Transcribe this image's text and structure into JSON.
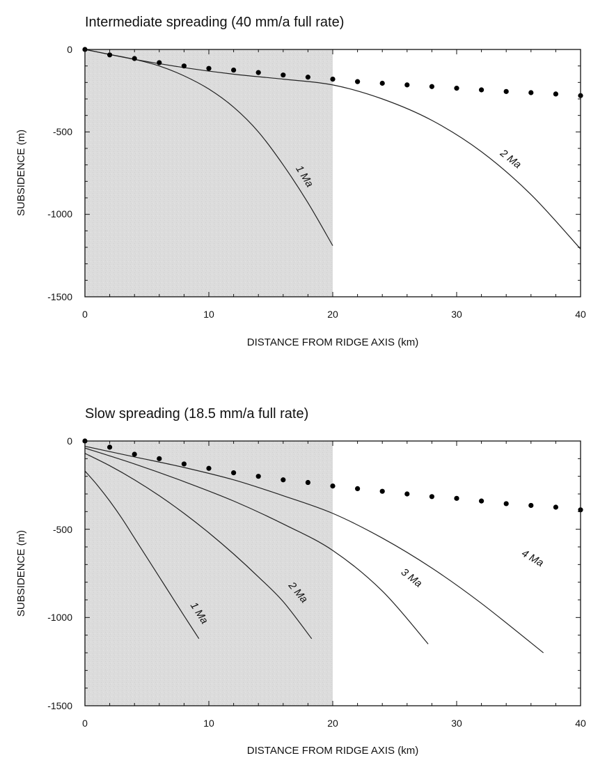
{
  "chart_data": [
    {
      "type": "line",
      "title": "Intermediate spreading (40 mm/a full rate)",
      "xlabel": "DISTANCE FROM RIDGE AXIS (km)",
      "ylabel": "SUBSIDENCE (m)",
      "xlim": [
        0,
        40
      ],
      "ylim": [
        -1500,
        0
      ],
      "xticks": [
        "0",
        "10",
        "20",
        "30",
        "40"
      ],
      "yticks": [
        "0",
        "-500",
        "-1000",
        "-1500"
      ],
      "shaded_region_x": [
        0,
        20
      ],
      "grid": false,
      "series": [
        {
          "name": "1 Ma",
          "kind": "line",
          "x": [
            0,
            2,
            4,
            6,
            8,
            10,
            12,
            14,
            16,
            18,
            20
          ],
          "y": [
            0,
            -30,
            -60,
            -100,
            -160,
            -240,
            -350,
            -500,
            -700,
            -930,
            -1190
          ]
        },
        {
          "name": "2 Ma",
          "kind": "line",
          "x": [
            0,
            4,
            8,
            12,
            16,
            20,
            24,
            28,
            32,
            36,
            40
          ],
          "y": [
            0,
            -60,
            -110,
            -150,
            -180,
            -215,
            -300,
            -430,
            -620,
            -880,
            -1210
          ]
        },
        {
          "kind": "points",
          "x": [
            0,
            2,
            4,
            6,
            8,
            10,
            12,
            14,
            16,
            18,
            20,
            22,
            24,
            26,
            28,
            30,
            32,
            34,
            36,
            38,
            40
          ],
          "y": [
            0,
            -33,
            -55,
            -80,
            -100,
            -115,
            -125,
            -140,
            -155,
            -168,
            -180,
            -195,
            -205,
            -215,
            -225,
            -235,
            -245,
            -255,
            -262,
            -270,
            -280
          ]
        }
      ],
      "annotations": [
        {
          "text": "1 Ma",
          "x": 17.5,
          "y": -780,
          "angle": 58
        },
        {
          "text": "2 Ma",
          "x": 34.2,
          "y": -680,
          "angle": 38
        }
      ]
    },
    {
      "type": "line",
      "title": "Slow spreading (18.5 mm/a full rate)",
      "xlabel": "DISTANCE FROM RIDGE AXIS (km)",
      "ylabel": "SUBSIDENCE (m)",
      "xlim": [
        0,
        40
      ],
      "ylim": [
        -1500,
        0
      ],
      "xticks": [
        "0",
        "10",
        "20",
        "30",
        "40"
      ],
      "yticks": [
        "0",
        "-500",
        "-1000",
        "-1500"
      ],
      "shaded_region_x": [
        0,
        20
      ],
      "grid": false,
      "series": [
        {
          "name": "1 Ma",
          "kind": "line",
          "x": [
            0,
            1,
            2,
            3,
            4,
            5,
            6,
            7,
            8,
            9.2
          ],
          "y": [
            -170,
            -250,
            -340,
            -440,
            -550,
            -660,
            -770,
            -880,
            -990,
            -1120
          ]
        },
        {
          "name": "2 Ma",
          "kind": "line",
          "x": [
            0,
            2,
            4,
            6,
            8,
            10,
            12,
            14,
            16,
            18.3
          ],
          "y": [
            -70,
            -140,
            -220,
            -310,
            -410,
            -520,
            -640,
            -770,
            -910,
            -1120
          ]
        },
        {
          "name": "3 Ma",
          "kind": "line",
          "x": [
            0,
            4,
            8,
            12,
            16,
            20,
            24,
            27.7
          ],
          "y": [
            -40,
            -130,
            -230,
            -340,
            -470,
            -620,
            -850,
            -1150
          ]
        },
        {
          "name": "4 Ma",
          "kind": "line",
          "x": [
            0,
            4,
            8,
            12,
            16,
            20,
            24,
            28,
            32,
            37
          ],
          "y": [
            -30,
            -90,
            -150,
            -220,
            -310,
            -410,
            -550,
            -720,
            -920,
            -1200
          ]
        },
        {
          "kind": "points",
          "x": [
            0,
            2,
            4,
            6,
            8,
            10,
            12,
            14,
            16,
            18,
            20,
            22,
            24,
            26,
            28,
            30,
            32,
            34,
            36,
            38,
            40
          ],
          "y": [
            0,
            -35,
            -75,
            -100,
            -130,
            -155,
            -180,
            -200,
            -220,
            -235,
            -255,
            -270,
            -285,
            -300,
            -315,
            -325,
            -340,
            -355,
            -365,
            -375,
            -390
          ]
        }
      ],
      "annotations": [
        {
          "text": "1 Ma",
          "x": 9.0,
          "y": -985,
          "angle": 57
        },
        {
          "text": "2 Ma",
          "x": 17.0,
          "y": -870,
          "angle": 50
        },
        {
          "text": "3 Ma",
          "x": 26.2,
          "y": -790,
          "angle": 38
        },
        {
          "text": "4 Ma",
          "x": 36.0,
          "y": -680,
          "angle": 30
        }
      ]
    }
  ]
}
